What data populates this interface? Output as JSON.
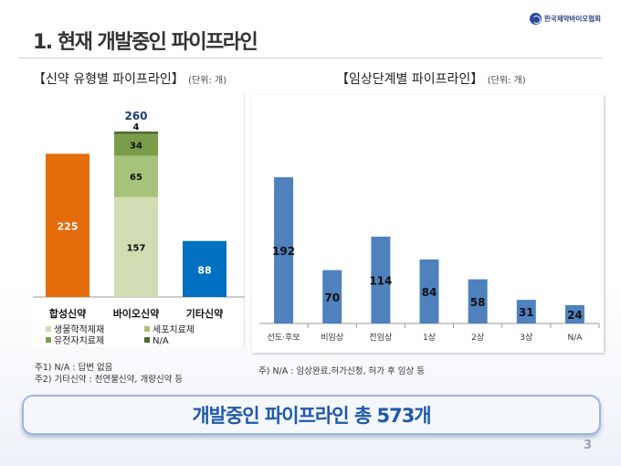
{
  "title": "1. 현재 개발중인 파이프라인",
  "logo_text": "한국제약바이오협회",
  "left_panel": {
    "title": "【신약 유형별 파이프라인】",
    "unit": "(단위: 개)"
  },
  "right_panel": {
    "title": "【임상단계별 파이프라인】",
    "unit": "(단위: 개)"
  },
  "chart_data": [
    {
      "type": "bar",
      "stacked": true,
      "categories": [
        "합성신약",
        "바이오신약",
        "기타신약"
      ],
      "series": [
        {
          "name": "생물학적제재",
          "color": "#d0ddb2",
          "values": [
            null,
            157,
            null
          ]
        },
        {
          "name": "세포치료제",
          "color": "#a7c27a",
          "values": [
            null,
            65,
            null
          ]
        },
        {
          "name": "유전자치료제",
          "color": "#7a9d4a",
          "values": [
            null,
            34,
            null
          ]
        },
        {
          "name": "N/A",
          "color": "#4f6b2a",
          "values": [
            null,
            4,
            null
          ]
        }
      ],
      "single_bars": [
        {
          "category": "합성신약",
          "value": 225,
          "color": "#e46c0a"
        },
        {
          "category": "기타신약",
          "value": 88,
          "color": "#0070c0"
        }
      ],
      "totals": [
        {
          "category": "바이오신약",
          "value": 260
        }
      ],
      "ylim": [
        0,
        280
      ],
      "grid": false,
      "legend_position": "bottom"
    },
    {
      "type": "bar",
      "categories": [
        "선도·후보",
        "비임상",
        "전임상",
        "1상",
        "2상",
        "3상",
        "N/A"
      ],
      "values": [
        192,
        70,
        114,
        84,
        58,
        31,
        24
      ],
      "color": "#4f81bd",
      "ylim": [
        0,
        240
      ],
      "grid": false
    }
  ],
  "notes_left": [
    "주1) N/A : 답변 없음",
    "주2) 기타신약 : 천연물신약, 개량신약 등"
  ],
  "note_right": "주) N/A : 임상완료,허가신청, 허가 후 임상 등",
  "summary": "개발중인 파이프라인 총 573개",
  "page_number": "3"
}
